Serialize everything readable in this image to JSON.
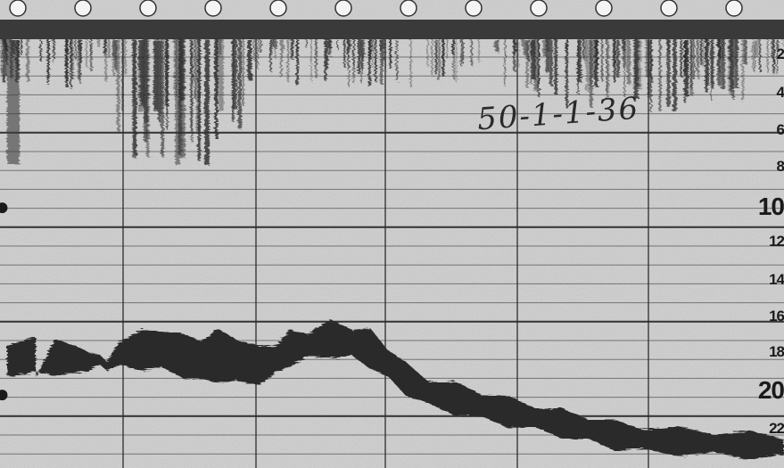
{
  "echogram": {
    "depth_scale_labels": [
      "2",
      "4",
      "6",
      "8",
      "10",
      "12",
      "14",
      "16",
      "18",
      "20",
      "22"
    ],
    "handwritten_annotation": "50-1-1-36",
    "colors": {
      "paper": "#c9c9c9",
      "grid": "#2b2b2b",
      "trace": "#2a2a2a",
      "label": "#1a1a1a"
    }
  }
}
